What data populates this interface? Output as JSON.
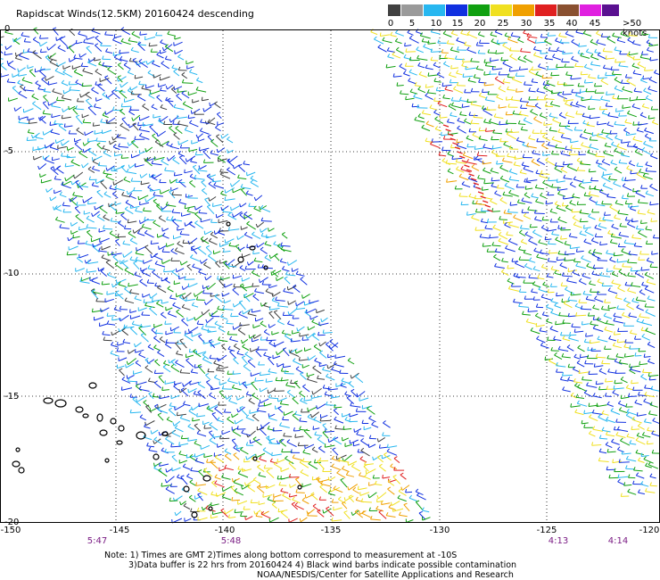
{
  "title": "Rapidscat Winds(12.5KM) 20160424 descending",
  "legend": {
    "labels": [
      "0",
      "5",
      "10",
      "15",
      "20",
      "25",
      "30",
      "35",
      "40",
      "45",
      ">50 knots"
    ],
    "colors": [
      "#404040",
      "#9a9a9a",
      "#27b7f0",
      "#1030e0",
      "#10a010",
      "#f0e020",
      "#f0a000",
      "#e02020",
      "#8a5030",
      "#e020e0",
      "#5a1090"
    ]
  },
  "axes": {
    "lat_labels": [
      "0",
      "-5",
      "-10",
      "-15",
      "-20"
    ],
    "lon_labels": [
      "-150",
      "-145",
      "-140",
      "-135",
      "-130",
      "-125",
      "-120"
    ]
  },
  "times": [
    "5:47",
    "5:48",
    "4:13",
    "4:14"
  ],
  "notes": {
    "line1": "Note: 1) Times are GMT 2)Times along bottom correspond to measurement at -10S",
    "line2": "3)Data buffer is 22 hrs from 20160424 4) Black wind barbs indicate possible contamination",
    "line3": "NOAA/NESDIS/Center for Satellite Applications and Research"
  }
}
